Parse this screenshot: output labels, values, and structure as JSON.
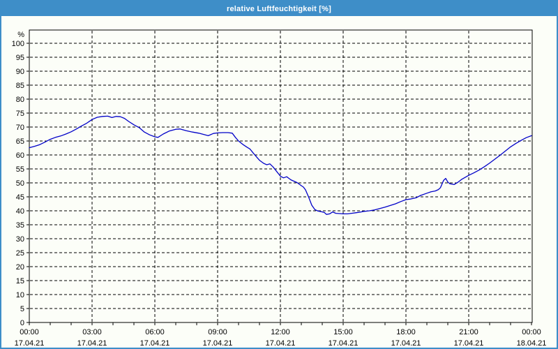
{
  "window": {
    "title": "relative Luftfeuchtigkeit [%]",
    "accent_color": "#3e8ec8",
    "background_color": "#fcfef8"
  },
  "chart_data": {
    "type": "line",
    "title": "relative Luftfeuchtigkeit [%]",
    "ylabel": "%",
    "xlabel": "",
    "ylim": [
      0,
      100
    ],
    "xlim_hours": [
      0,
      24
    ],
    "grid": {
      "style": "dashed",
      "horizontal_every_pct": 5,
      "vertical_every_hours": 3,
      "minor_x_tick_every_hours": 1,
      "color": "#000000"
    },
    "legend": "none",
    "line_color": "#0000c8",
    "axis_color": "#000000",
    "y_ticks": [
      0,
      5,
      10,
      15,
      20,
      25,
      30,
      35,
      40,
      45,
      50,
      55,
      60,
      65,
      70,
      75,
      80,
      85,
      90,
      95,
      100
    ],
    "x_ticks": [
      {
        "hour": 0,
        "time": "00:00",
        "date": "17.04.21"
      },
      {
        "hour": 3,
        "time": "03:00",
        "date": "17.04.21"
      },
      {
        "hour": 6,
        "time": "06:00",
        "date": "17.04.21"
      },
      {
        "hour": 9,
        "time": "09:00",
        "date": "17.04.21"
      },
      {
        "hour": 12,
        "time": "12:00",
        "date": "17.04.21"
      },
      {
        "hour": 15,
        "time": "15:00",
        "date": "17.04.21"
      },
      {
        "hour": 18,
        "time": "18:00",
        "date": "17.04.21"
      },
      {
        "hour": 21,
        "time": "21:00",
        "date": "17.04.21"
      },
      {
        "hour": 24,
        "time": "00:00",
        "date": "18.04.21"
      }
    ],
    "series": [
      {
        "name": "relative Luftfeuchtigkeit [%]",
        "points": [
          [
            0,
            62.6
          ],
          [
            0.25,
            63.1
          ],
          [
            0.5,
            63.7
          ],
          [
            0.75,
            64.6
          ],
          [
            1,
            65.6
          ],
          [
            1.25,
            66.3
          ],
          [
            1.5,
            66.8
          ],
          [
            1.75,
            67.5
          ],
          [
            2,
            68.3
          ],
          [
            2.25,
            69.3
          ],
          [
            2.5,
            70.4
          ],
          [
            2.75,
            71.4
          ],
          [
            3,
            72.7
          ],
          [
            3.25,
            73.5
          ],
          [
            3.5,
            73.8
          ],
          [
            3.75,
            73.9
          ],
          [
            3.95,
            73.4
          ],
          [
            4.15,
            73.8
          ],
          [
            4.35,
            73.7
          ],
          [
            4.55,
            73.1
          ],
          [
            4.75,
            72.0
          ],
          [
            5,
            70.8
          ],
          [
            5.25,
            69.8
          ],
          [
            5.5,
            68.2
          ],
          [
            5.75,
            67.2
          ],
          [
            6,
            66.5
          ],
          [
            6.15,
            66.3
          ],
          [
            6.4,
            67.5
          ],
          [
            6.7,
            68.6
          ],
          [
            7,
            69.2
          ],
          [
            7.2,
            69.3
          ],
          [
            7.5,
            68.7
          ],
          [
            7.8,
            68.2
          ],
          [
            8.1,
            67.8
          ],
          [
            8.35,
            67.3
          ],
          [
            8.55,
            66.9
          ],
          [
            8.8,
            67.7
          ],
          [
            9,
            67.9
          ],
          [
            9.25,
            68.0
          ],
          [
            9.5,
            68.0
          ],
          [
            9.7,
            67.8
          ],
          [
            9.85,
            66.3
          ],
          [
            10,
            65.0
          ],
          [
            10.2,
            63.8
          ],
          [
            10.4,
            62.8
          ],
          [
            10.55,
            62.1
          ],
          [
            10.7,
            60.7
          ],
          [
            10.85,
            59.4
          ],
          [
            11,
            58.1
          ],
          [
            11.2,
            57.0
          ],
          [
            11.35,
            56.5
          ],
          [
            11.5,
            56.8
          ],
          [
            11.65,
            55.7
          ],
          [
            11.8,
            54.3
          ],
          [
            12,
            52.4
          ],
          [
            12.15,
            51.8
          ],
          [
            12.3,
            52.2
          ],
          [
            12.5,
            51.1
          ],
          [
            12.65,
            50.6
          ],
          [
            12.8,
            50.1
          ],
          [
            13,
            49.0
          ],
          [
            13.1,
            48.5
          ],
          [
            13.2,
            47.5
          ],
          [
            13.35,
            44.9
          ],
          [
            13.5,
            42.0
          ],
          [
            13.65,
            40.4
          ],
          [
            13.8,
            39.9
          ],
          [
            13.95,
            39.7
          ],
          [
            14.1,
            39.4
          ],
          [
            14.2,
            38.7
          ],
          [
            14.35,
            38.9
          ],
          [
            14.5,
            39.6
          ],
          [
            14.65,
            39.1
          ],
          [
            14.85,
            39.0
          ],
          [
            15,
            38.9
          ],
          [
            15.2,
            38.9
          ],
          [
            15.4,
            39.1
          ],
          [
            15.6,
            39.3
          ],
          [
            15.8,
            39.5
          ],
          [
            16,
            39.8
          ],
          [
            16.25,
            40.0
          ],
          [
            16.5,
            40.3
          ],
          [
            16.75,
            40.8
          ],
          [
            17,
            41.3
          ],
          [
            17.25,
            41.9
          ],
          [
            17.5,
            42.5
          ],
          [
            17.75,
            43.3
          ],
          [
            18,
            44.0
          ],
          [
            18.2,
            44.2
          ],
          [
            18.5,
            44.7
          ],
          [
            18.7,
            45.5
          ],
          [
            19,
            46.3
          ],
          [
            19.2,
            46.8
          ],
          [
            19.4,
            47.1
          ],
          [
            19.55,
            47.6
          ],
          [
            19.65,
            48.3
          ],
          [
            19.8,
            50.9
          ],
          [
            19.9,
            51.6
          ],
          [
            20,
            50.3
          ],
          [
            20.1,
            49.7
          ],
          [
            20.3,
            49.4
          ],
          [
            20.5,
            50.3
          ],
          [
            20.65,
            51.2
          ],
          [
            21,
            52.7
          ],
          [
            21.25,
            53.6
          ],
          [
            21.5,
            54.6
          ],
          [
            21.75,
            55.8
          ],
          [
            22,
            57.1
          ],
          [
            22.25,
            58.5
          ],
          [
            22.5,
            59.9
          ],
          [
            22.75,
            61.4
          ],
          [
            23,
            62.9
          ],
          [
            23.25,
            64.1
          ],
          [
            23.5,
            65.2
          ],
          [
            23.75,
            66.2
          ],
          [
            24,
            66.9
          ]
        ]
      }
    ]
  }
}
